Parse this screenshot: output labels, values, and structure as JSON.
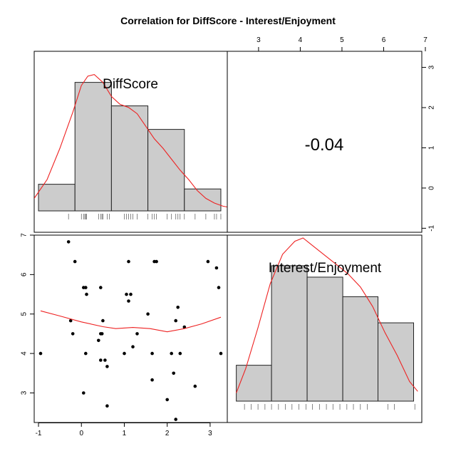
{
  "title": "Correlation  for DiffScore - Interest/Enjoyment",
  "colors": {
    "bar_fill": "#cccccc",
    "bar_stroke": "#222222",
    "density": "#ee2222",
    "smooth": "#ee2222",
    "points": "#000000",
    "frame": "#000000"
  },
  "chart_data": [
    {
      "type": "bar",
      "panel": "top-left",
      "label": "DiffScore",
      "bins": [
        -1.0,
        -0.15,
        0.7,
        1.55,
        2.4,
        3.25
      ],
      "heights": [
        0.17,
        0.82,
        0.67,
        0.52,
        0.14
      ],
      "density_curve": {
        "x": [
          -1.1,
          -0.8,
          -0.5,
          -0.2,
          0.0,
          0.15,
          0.3,
          0.5,
          0.7,
          0.9,
          1.1,
          1.3,
          1.5,
          1.7,
          1.9,
          2.1,
          2.3,
          2.5,
          2.7,
          2.9,
          3.1,
          3.3,
          3.5
        ],
        "y": [
          0.08,
          0.2,
          0.4,
          0.63,
          0.8,
          0.86,
          0.87,
          0.82,
          0.73,
          0.68,
          0.66,
          0.62,
          0.54,
          0.46,
          0.4,
          0.33,
          0.26,
          0.2,
          0.13,
          0.08,
          0.05,
          0.03,
          0.02
        ]
      },
      "rug": [
        -0.3,
        0.0,
        0.05,
        0.08,
        0.1,
        0.12,
        0.4,
        0.45,
        0.48,
        0.5,
        0.6,
        0.65,
        1.0,
        1.05,
        1.1,
        1.15,
        1.2,
        1.3,
        1.55,
        1.65,
        1.7,
        1.75,
        2.0,
        2.1,
        2.2,
        2.25,
        2.3,
        2.4,
        2.65,
        2.9,
        3.1,
        3.15,
        3.25
      ],
      "ylim": [
        0,
        1
      ]
    },
    {
      "type": "table",
      "panel": "top-right",
      "value": "-0.04"
    },
    {
      "type": "scatter",
      "panel": "bottom-left",
      "xlim": [
        -1.1,
        3.4
      ],
      "ylim": [
        2.25,
        7.0
      ],
      "x_ticks": [
        -1,
        0,
        1,
        2,
        3
      ],
      "y_ticks": [
        3,
        4,
        5,
        6,
        7
      ],
      "points": [
        [
          -0.95,
          4.0
        ],
        [
          -0.3,
          6.83
        ],
        [
          -0.25,
          4.83
        ],
        [
          -0.15,
          6.33
        ],
        [
          -0.2,
          4.5
        ],
        [
          0.05,
          5.67
        ],
        [
          0.1,
          5.67
        ],
        [
          0.12,
          5.5
        ],
        [
          0.05,
          3.0
        ],
        [
          0.1,
          4.0
        ],
        [
          0.4,
          4.33
        ],
        [
          0.45,
          4.5
        ],
        [
          0.48,
          4.5
        ],
        [
          0.45,
          5.67
        ],
        [
          0.5,
          4.83
        ],
        [
          0.45,
          3.83
        ],
        [
          0.55,
          3.83
        ],
        [
          0.6,
          3.67
        ],
        [
          0.6,
          2.67
        ],
        [
          1.0,
          4.0
        ],
        [
          1.05,
          5.5
        ],
        [
          1.1,
          5.33
        ],
        [
          1.1,
          6.33
        ],
        [
          1.15,
          5.5
        ],
        [
          1.2,
          4.17
        ],
        [
          1.3,
          4.5
        ],
        [
          1.55,
          5.0
        ],
        [
          1.65,
          3.33
        ],
        [
          1.65,
          4.0
        ],
        [
          1.7,
          6.33
        ],
        [
          1.75,
          6.33
        ],
        [
          2.0,
          2.83
        ],
        [
          2.1,
          4.0
        ],
        [
          2.15,
          3.5
        ],
        [
          2.2,
          4.83
        ],
        [
          2.25,
          5.17
        ],
        [
          2.2,
          2.33
        ],
        [
          2.3,
          4.0
        ],
        [
          2.4,
          4.67
        ],
        [
          2.65,
          3.17
        ],
        [
          2.95,
          6.33
        ],
        [
          3.15,
          6.17
        ],
        [
          3.2,
          5.67
        ],
        [
          3.25,
          4.0
        ]
      ],
      "smooth": {
        "x": [
          -0.95,
          -0.5,
          0.0,
          0.5,
          0.8,
          1.2,
          1.6,
          2.0,
          2.4,
          2.8,
          3.25
        ],
        "y": [
          5.08,
          4.95,
          4.8,
          4.68,
          4.63,
          4.66,
          4.63,
          4.55,
          4.63,
          4.75,
          4.92
        ]
      }
    },
    {
      "type": "bar",
      "panel": "bottom-right",
      "label": "Interest/Enjoyment",
      "bins": [
        2.47,
        3.33,
        4.2,
        5.07,
        5.93,
        6.8
      ],
      "heights": [
        0.22,
        0.83,
        0.76,
        0.64,
        0.48
      ],
      "density_curve": {
        "x": [
          2.47,
          2.7,
          3.0,
          3.3,
          3.6,
          3.9,
          4.1,
          4.3,
          4.6,
          4.9,
          5.2,
          5.5,
          5.8,
          6.1,
          6.4,
          6.7,
          6.9
        ],
        "y": [
          0.05,
          0.2,
          0.45,
          0.72,
          0.9,
          0.98,
          1.0,
          0.96,
          0.9,
          0.84,
          0.78,
          0.7,
          0.58,
          0.42,
          0.28,
          0.12,
          0.06
        ]
      },
      "rug": [
        2.67,
        2.83,
        3.0,
        3.17,
        3.33,
        3.5,
        3.67,
        3.83,
        4.0,
        4.17,
        4.33,
        4.5,
        4.67,
        4.83,
        5.0,
        5.17,
        5.33,
        5.5,
        5.67,
        6.17,
        6.33,
        6.83
      ],
      "ylim": [
        0,
        1
      ]
    }
  ],
  "axes": {
    "top_x_ticks": [
      3,
      4,
      5,
      6,
      7
    ],
    "right_y_ticks": [
      -1,
      0,
      1,
      2,
      3
    ],
    "right_ylim": [
      -1.1,
      3.4
    ]
  }
}
